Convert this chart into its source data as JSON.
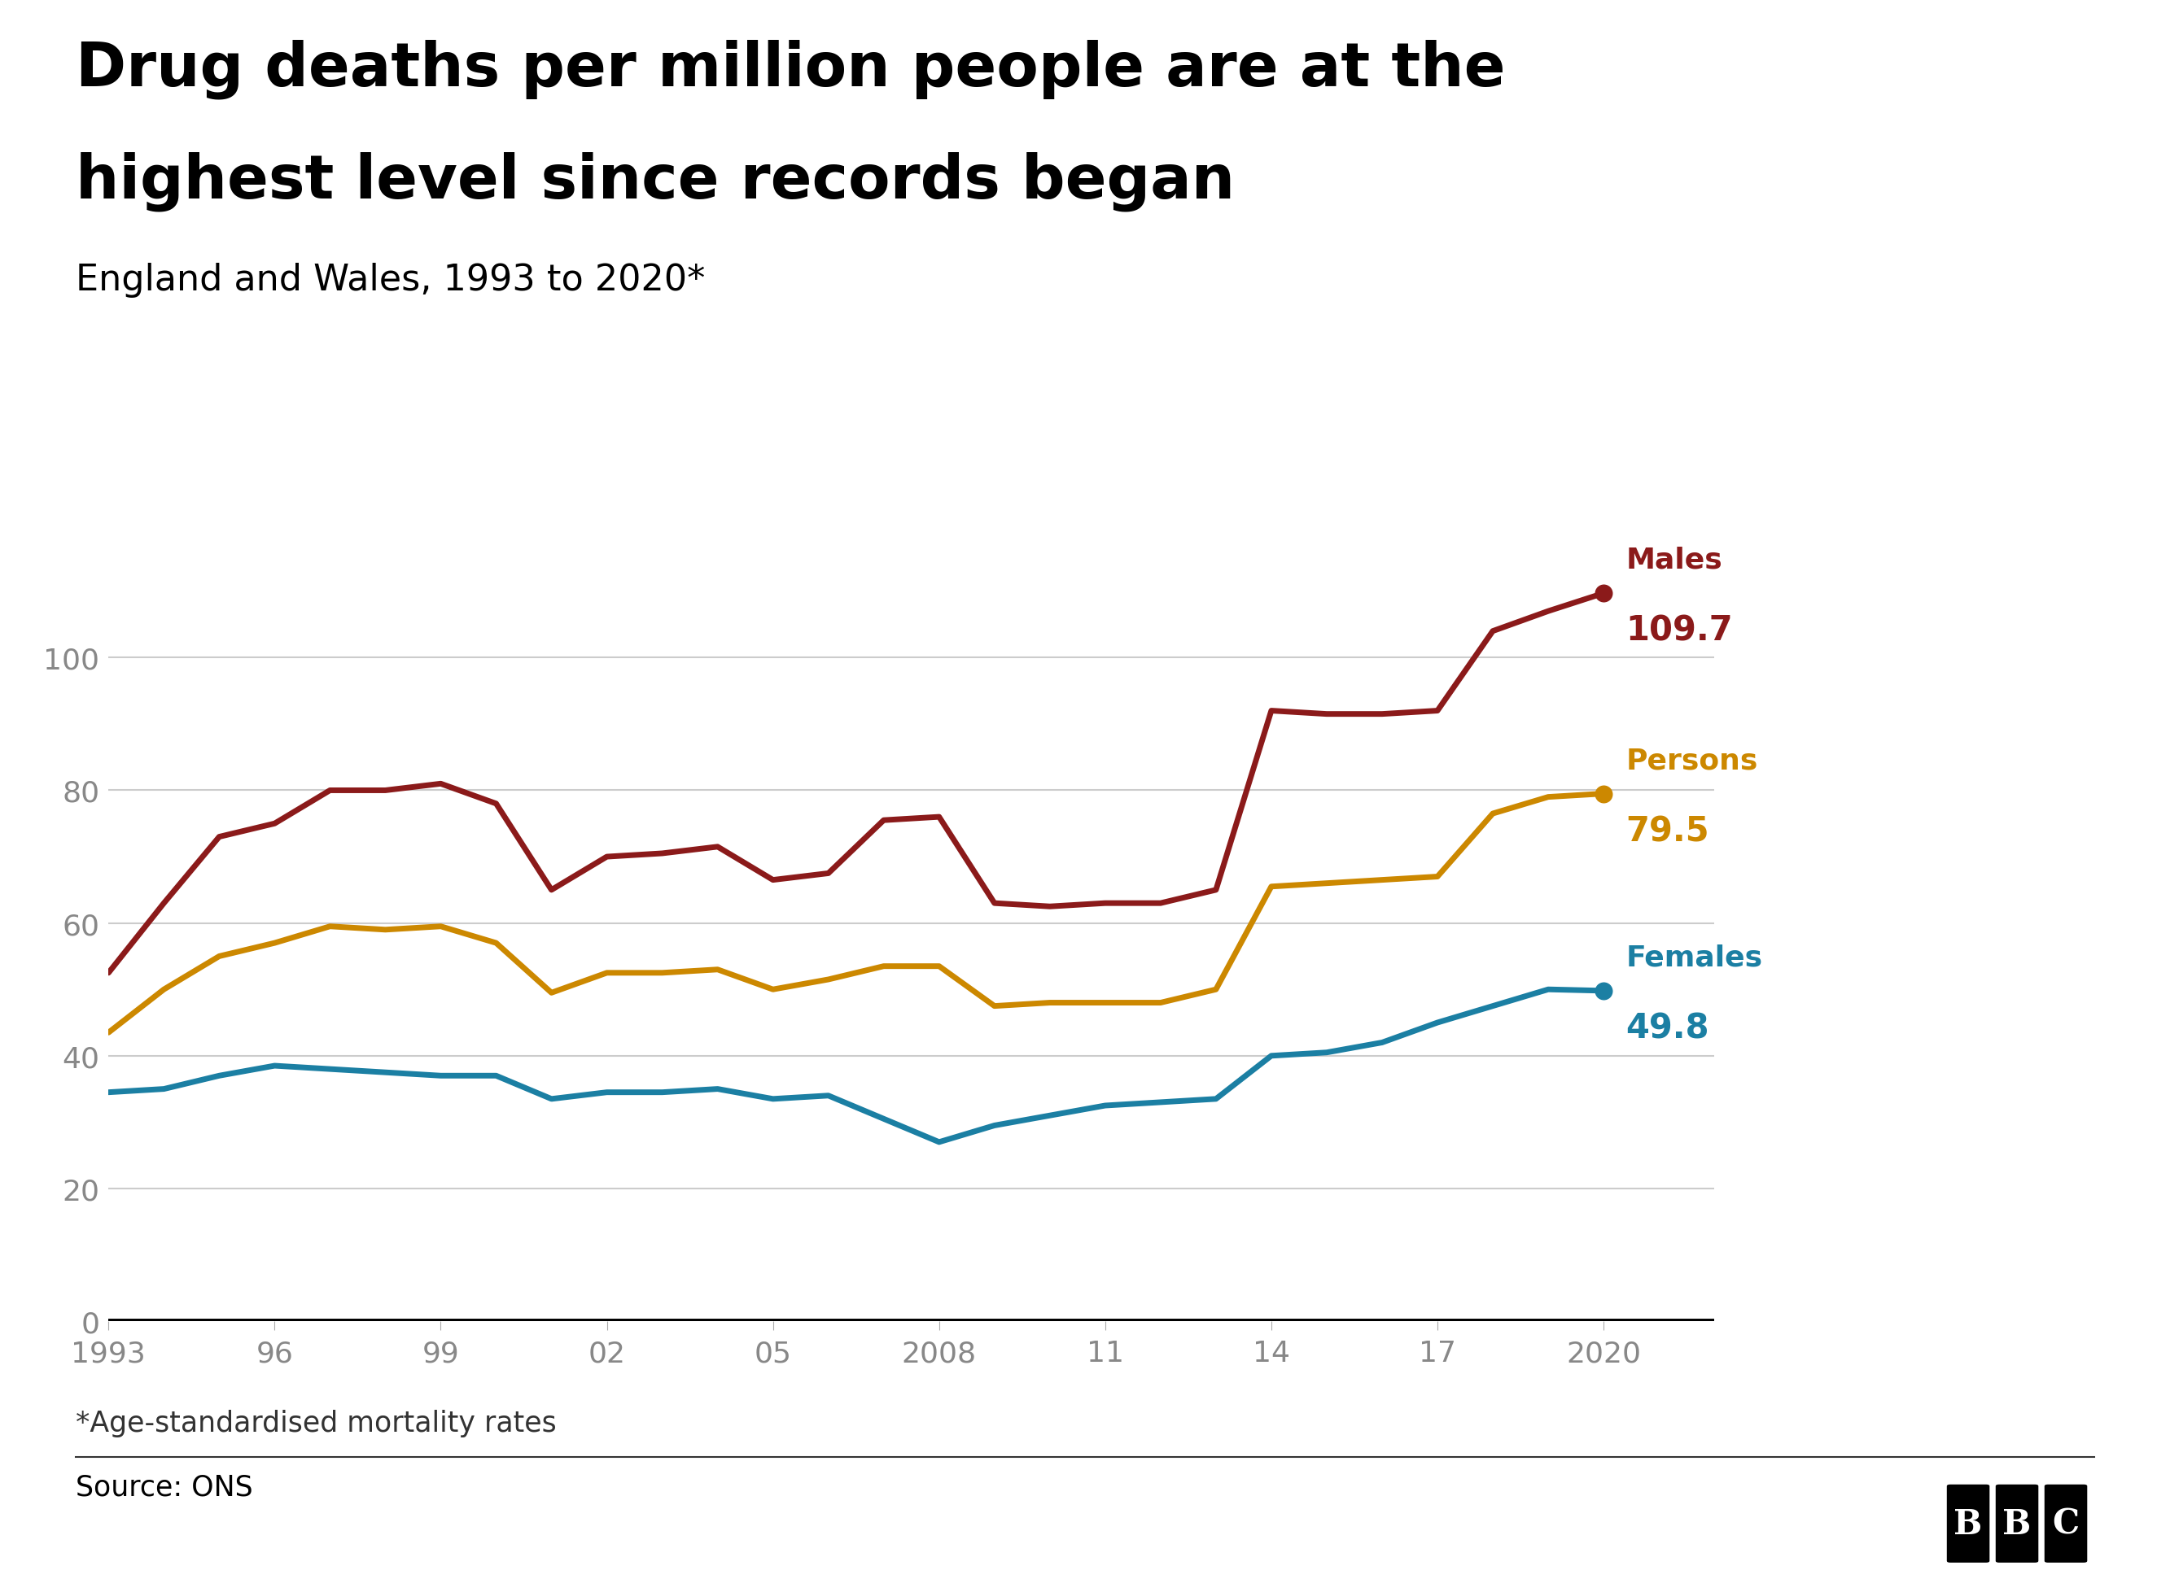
{
  "title_line1": "Drug deaths per million people are at the",
  "title_line2": "highest level since records began",
  "subtitle": "England and Wales, 1993 to 2020*",
  "footnote": "*Age-standardised mortality rates",
  "source": "Source: ONS",
  "years": [
    1993,
    1994,
    1995,
    1996,
    1997,
    1998,
    1999,
    2000,
    2001,
    2002,
    2003,
    2004,
    2005,
    2006,
    2007,
    2008,
    2009,
    2010,
    2011,
    2012,
    2013,
    2014,
    2015,
    2016,
    2017,
    2018,
    2019,
    2020
  ],
  "males": [
    52.5,
    63.0,
    73.0,
    75.0,
    80.0,
    80.0,
    81.0,
    78.0,
    65.0,
    70.0,
    70.5,
    71.5,
    66.5,
    67.5,
    75.5,
    76.0,
    63.0,
    62.5,
    63.0,
    63.0,
    65.0,
    92.0,
    91.5,
    91.5,
    92.0,
    104.0,
    107.0,
    109.7
  ],
  "persons": [
    43.5,
    50.0,
    55.0,
    57.0,
    59.5,
    59.0,
    59.5,
    57.0,
    49.5,
    52.5,
    52.5,
    53.0,
    50.0,
    51.5,
    53.5,
    53.5,
    47.5,
    48.0,
    48.0,
    48.0,
    50.0,
    65.5,
    66.0,
    66.5,
    67.0,
    76.5,
    79.0,
    79.5
  ],
  "females": [
    34.5,
    35.0,
    37.0,
    38.5,
    38.0,
    37.5,
    37.0,
    37.0,
    33.5,
    34.5,
    34.5,
    35.0,
    33.5,
    34.0,
    30.5,
    27.0,
    29.5,
    31.0,
    32.5,
    33.0,
    33.5,
    40.0,
    40.5,
    42.0,
    45.0,
    47.5,
    50.0,
    49.8
  ],
  "males_color": "#8B1A1A",
  "persons_color": "#CC8800",
  "females_color": "#1B7FA3",
  "background_color": "#ffffff",
  "grid_color": "#cccccc",
  "tick_label_color": "#888888",
  "xtick_labels": [
    "1993",
    "96",
    "99",
    "02",
    "05",
    "2008",
    "11",
    "14",
    "17",
    "2020"
  ],
  "xtick_positions": [
    1993,
    1996,
    1999,
    2002,
    2005,
    2008,
    2011,
    2014,
    2017,
    2020
  ],
  "ytick_labels": [
    "0",
    "20",
    "40",
    "60",
    "80",
    "100"
  ],
  "ytick_positions": [
    0,
    20,
    40,
    60,
    80,
    100
  ],
  "ylim": [
    0,
    120
  ],
  "xlim": [
    1993,
    2022
  ]
}
